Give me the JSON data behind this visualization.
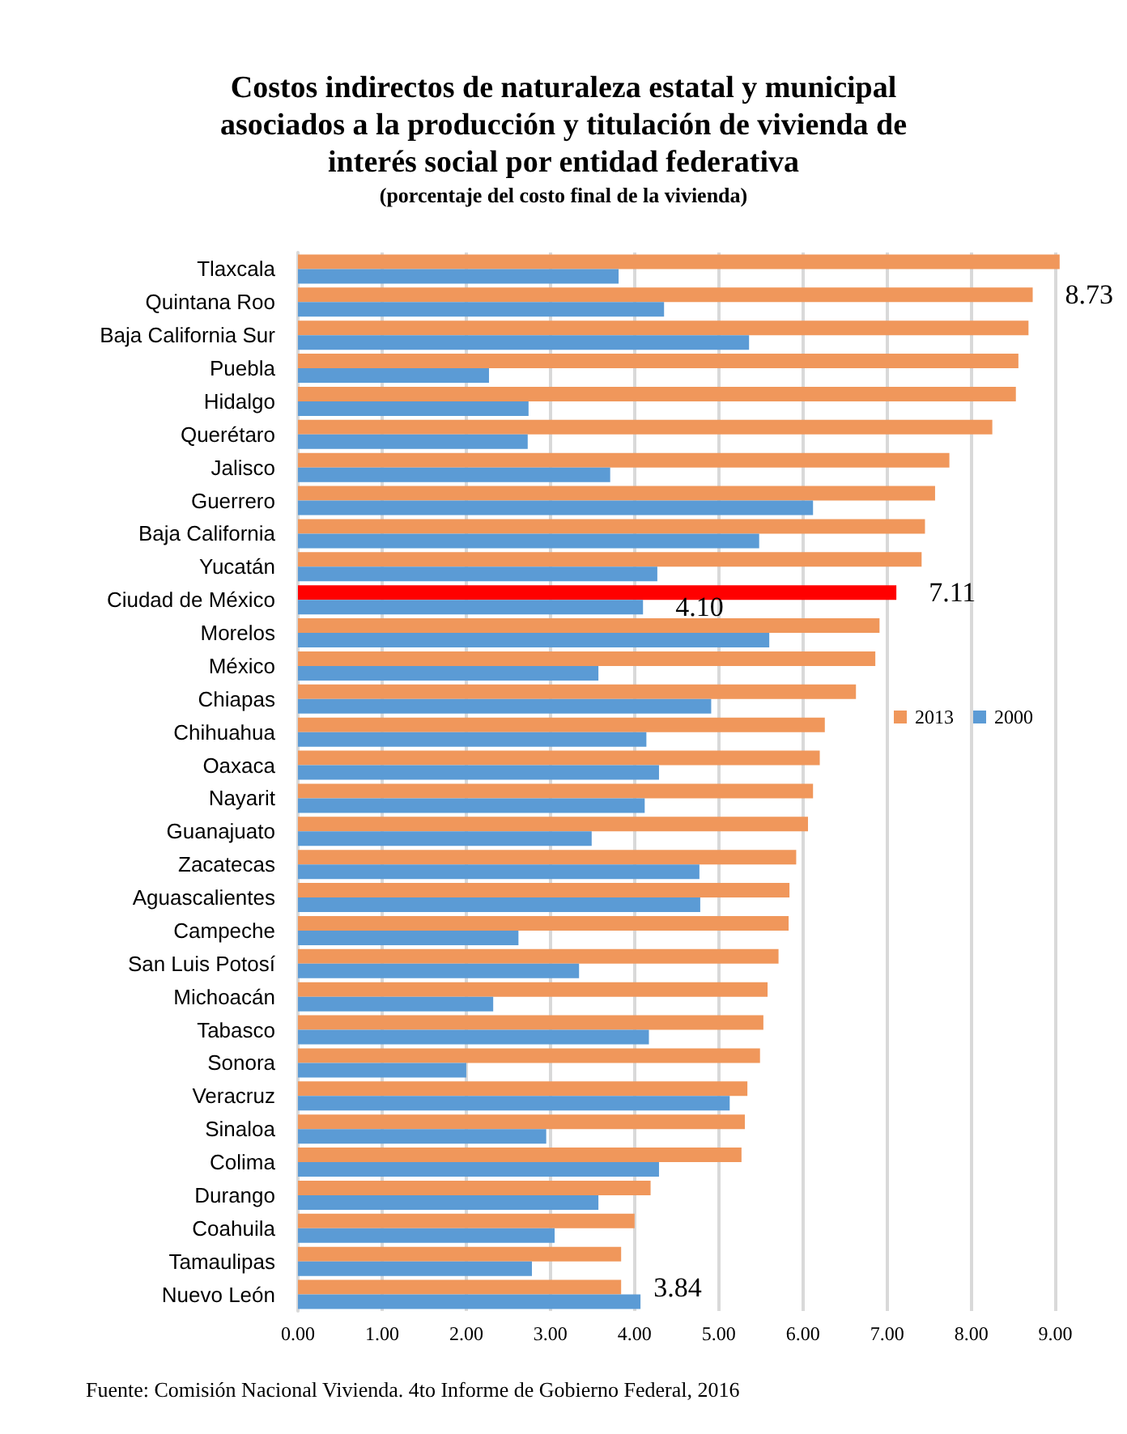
{
  "chart_data": {
    "type": "bar",
    "orientation": "horizontal",
    "title": "Costos indirectos de naturaleza estatal y municipal\nasociados a la producción y titulación de vivienda de\ninterés social por entidad federativa",
    "subtitle": "(porcentaje del costo final de la vivienda)",
    "categories": [
      "Tlaxcala",
      "Quintana Roo",
      "Baja California Sur",
      "Puebla",
      "Hidalgo",
      "Querétaro",
      "Jalisco",
      "Guerrero",
      "Baja California",
      "Yucatán",
      "Ciudad de México",
      "Morelos",
      "México",
      "Chiapas",
      "Chihuahua",
      "Oaxaca",
      "Nayarit",
      "Guanajuato",
      "Zacatecas",
      "Aguascalientes",
      "Campeche",
      "San Luis Potosí",
      "Michoacán",
      "Tabasco",
      "Sonora",
      "Veracruz",
      "Sinaloa",
      "Colima",
      "Durango",
      "Coahuila",
      "Tamaulipas",
      "Nuevo León"
    ],
    "series": [
      {
        "name": "2013",
        "color": "#f0975b",
        "colors": [
          "#f0975b",
          "#f0975b",
          "#f0975b",
          "#f0975b",
          "#f0975b",
          "#f0975b",
          "#f0975b",
          "#f0975b",
          "#f0975b",
          "#f0975b",
          "#ff0000",
          "#f0975b",
          "#f0975b",
          "#f0975b",
          "#f0975b",
          "#f0975b",
          "#f0975b",
          "#f0975b",
          "#f0975b",
          "#f0975b",
          "#f0975b",
          "#f0975b",
          "#f0975b",
          "#f0975b",
          "#f0975b",
          "#f0975b",
          "#f0975b",
          "#f0975b",
          "#f0975b",
          "#f0975b",
          "#f0975b",
          "#f0975b"
        ],
        "values": [
          9.05,
          8.73,
          8.68,
          8.56,
          8.53,
          8.25,
          7.74,
          7.57,
          7.45,
          7.41,
          7.11,
          6.91,
          6.86,
          6.63,
          6.26,
          6.2,
          6.12,
          6.06,
          5.92,
          5.84,
          5.83,
          5.71,
          5.58,
          5.53,
          5.49,
          5.34,
          5.31,
          5.27,
          4.19,
          4.0,
          3.84,
          3.84
        ],
        "value_labels": [
          null,
          "8.73",
          null,
          null,
          null,
          null,
          null,
          null,
          null,
          null,
          "7.11",
          null,
          null,
          null,
          null,
          null,
          null,
          null,
          null,
          null,
          null,
          null,
          null,
          null,
          null,
          null,
          null,
          null,
          null,
          null,
          null,
          "3.84"
        ]
      },
      {
        "name": "2000",
        "color": "#5b9bd5",
        "values": [
          3.81,
          4.35,
          5.36,
          2.27,
          2.74,
          2.73,
          3.71,
          6.12,
          5.48,
          4.27,
          4.1,
          5.6,
          3.57,
          4.91,
          4.14,
          4.29,
          4.12,
          3.49,
          4.77,
          4.78,
          2.62,
          3.34,
          2.32,
          4.17,
          2.0,
          5.13,
          2.95,
          4.29,
          3.57,
          3.05,
          2.78,
          4.07
        ],
        "value_labels": [
          null,
          null,
          null,
          null,
          null,
          null,
          null,
          null,
          null,
          null,
          "4.10",
          null,
          null,
          null,
          null,
          null,
          null,
          null,
          null,
          null,
          null,
          null,
          null,
          null,
          null,
          null,
          null,
          null,
          null,
          null,
          null,
          null
        ]
      }
    ],
    "xlim": [
      0,
      9.1
    ],
    "xticks": [
      {
        "value": 0,
        "label": "0.00"
      },
      {
        "value": 1,
        "label": "1.00"
      },
      {
        "value": 2,
        "label": "2.00"
      },
      {
        "value": 3,
        "label": "3.00"
      },
      {
        "value": 4,
        "label": "4.00"
      },
      {
        "value": 5,
        "label": "5.00"
      },
      {
        "value": 6,
        "label": "6.00"
      },
      {
        "value": 7,
        "label": "7.00"
      },
      {
        "value": 8,
        "label": "8.00"
      },
      {
        "value": 9,
        "label": "9.00"
      }
    ],
    "grid": "x",
    "legend": "right",
    "annotations": [
      "Fuente: Comisión Nacional Vivienda. 4to Informe de Gobierno Federal, 2016"
    ]
  }
}
